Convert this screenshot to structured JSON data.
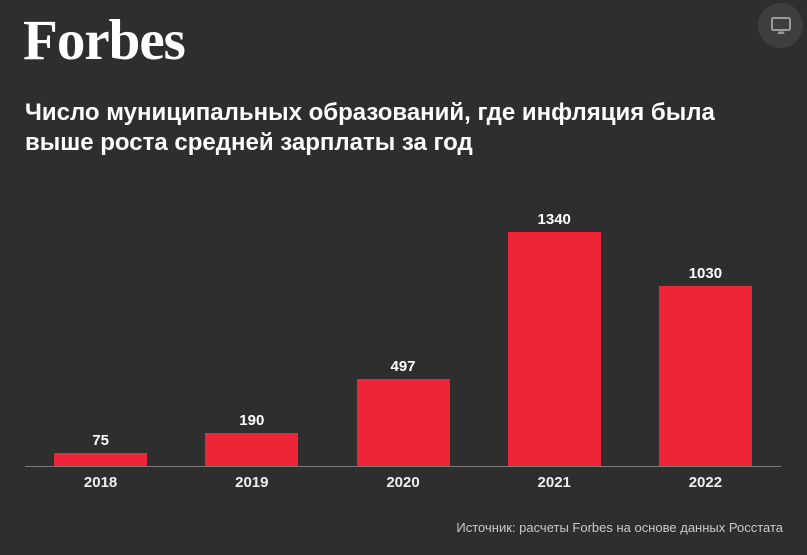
{
  "brand": {
    "logo": "Forbes"
  },
  "title": {
    "line1": "Число муниципальных образований, где инфляция была",
    "line2": "выше роста средней зарплаты за год"
  },
  "source": "Источник: расчеты Forbes на основе данных Росстата",
  "header_icon": "monitor-icon",
  "colors": {
    "background": "#2E2E2E",
    "bar": "#ED2537",
    "axis": "#7B7B7B",
    "text": "#FFFFFF",
    "source_text": "#C9C9C9",
    "icon_circle": "#3E3E3E",
    "icon_glyph": "#9A9A9A"
  },
  "chart_data": {
    "type": "bar",
    "categories": [
      "2018",
      "2019",
      "2020",
      "2021",
      "2022"
    ],
    "values": [
      75,
      190,
      497,
      1340,
      1030
    ],
    "title": "Число муниципальных образований, где инфляция была выше роста средней зарплаты за год",
    "xlabel": "",
    "ylabel": "",
    "ylim": [
      0,
      1400
    ],
    "bar_color": "#ED2537",
    "value_labels": true,
    "grid": false,
    "legend": false,
    "source": "Источник: расчеты Forbes на основе данных Росстата"
  }
}
